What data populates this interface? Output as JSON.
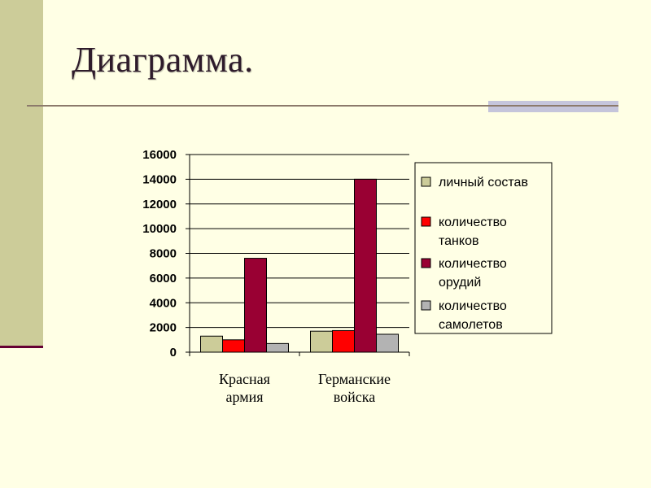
{
  "slide": {
    "title": "Диаграмма."
  },
  "colors": {
    "background": "#FFFFE5",
    "accent_band": "#CCCC99",
    "accent_line": "#660033"
  },
  "chart_data": {
    "type": "bar",
    "categories": [
      "Красная армия",
      "Германские войска"
    ],
    "category_lines": [
      [
        "Красная",
        "армия"
      ],
      [
        "Германские",
        "войска"
      ]
    ],
    "series": [
      {
        "name": "личный состав",
        "legend_lines": [
          "личный состав"
        ],
        "color": "#CCCC99",
        "values": [
          1300,
          1700
        ]
      },
      {
        "name": "количество танков",
        "legend_lines": [
          "количество",
          "танков"
        ],
        "color": "#FF0000",
        "values": [
          1000,
          1750
        ]
      },
      {
        "name": "количество орудий",
        "legend_lines": [
          "количество",
          "орудий"
        ],
        "color": "#990033",
        "values": [
          7600,
          14000
        ]
      },
      {
        "name": "количество самолетов",
        "legend_lines": [
          "количество",
          "самолетов"
        ],
        "color": "#B3B3B3",
        "values": [
          700,
          1450
        ]
      }
    ],
    "ylim": [
      0,
      16000
    ],
    "yticks": [
      "0",
      "2000",
      "4000",
      "6000",
      "8000",
      "10000",
      "12000",
      "14000",
      "16000"
    ],
    "grid": true,
    "legend_position": "right",
    "title": "",
    "xlabel": "",
    "ylabel": ""
  }
}
